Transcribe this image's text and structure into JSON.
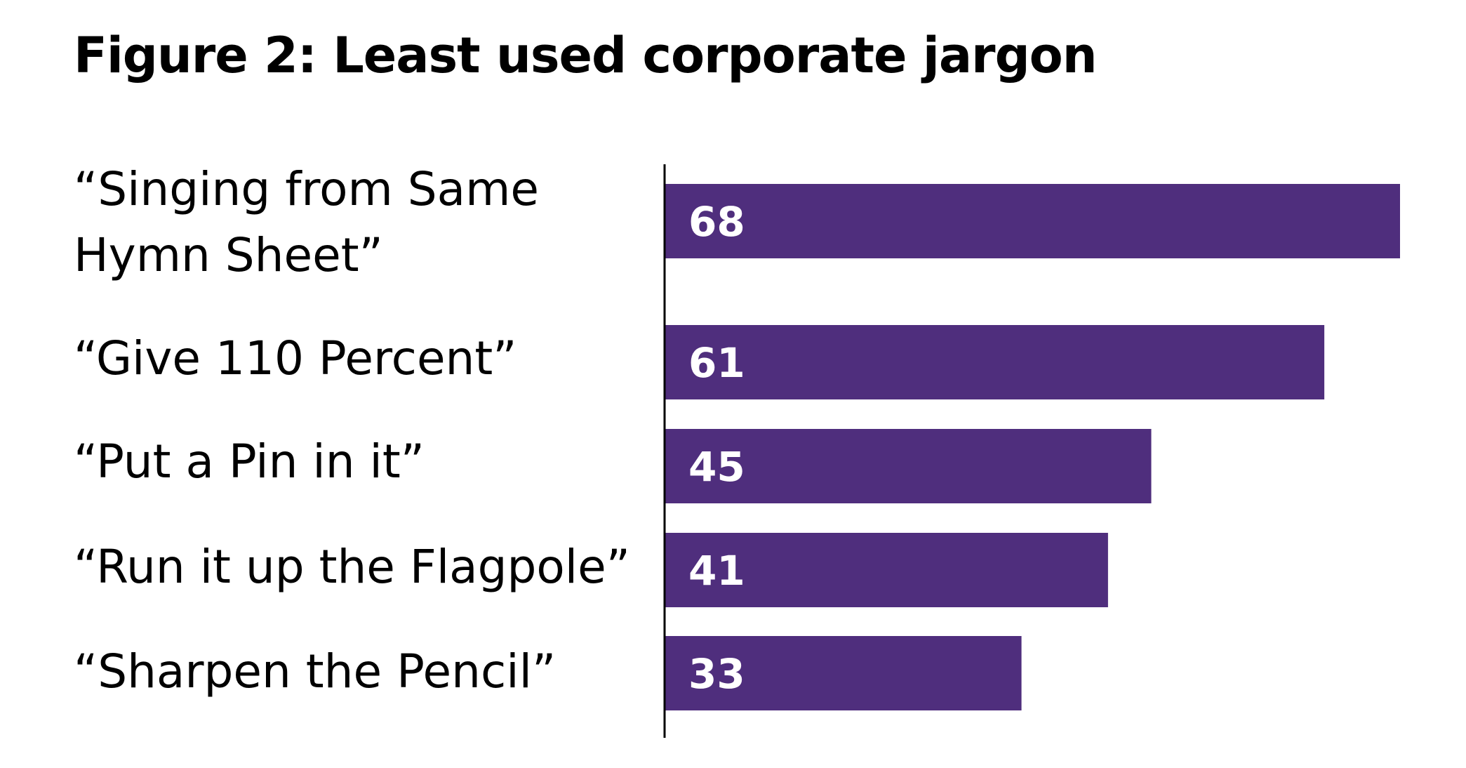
{
  "chart_data": {
    "type": "bar",
    "orientation": "horizontal",
    "title": "Figure 2: Least used corporate jargon",
    "categories": [
      [
        "“Singing from Same",
        "Hymn Sheet”"
      ],
      [
        "“Give 110 Percent”"
      ],
      [
        "“Put a Pin in it”"
      ],
      [
        "“Run it up the Flagpole”"
      ],
      [
        "“Sharpen the Pencil”"
      ]
    ],
    "values": [
      68,
      61,
      45,
      41,
      33
    ],
    "data_labels": [
      "68",
      "61",
      "45",
      "41",
      "33"
    ],
    "xlabel": "",
    "ylabel": "",
    "xlim": [
      0,
      68
    ],
    "grid": false,
    "bar_color": "#4f2e7d"
  }
}
